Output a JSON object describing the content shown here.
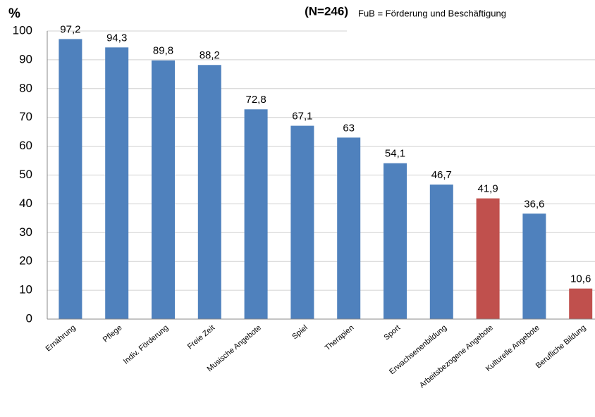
{
  "chart_data": {
    "type": "bar",
    "title": "(N=246)",
    "subtitle": "FuB = Förderung und Beschäftigung",
    "y_label": "%",
    "categories": [
      "Ernährung",
      "Pflege",
      "Indiv. Förderung",
      "Freie Zeit",
      "Musische Angebote",
      "Spiel",
      "Therapien",
      "Sport",
      "Erwachsenenbildung",
      "Arbeitsbezogene Angebote",
      "Kulturelle Angebote",
      "Berufliche Bildung"
    ],
    "values": [
      97.2,
      94.3,
      89.8,
      88.2,
      72.8,
      67.1,
      63,
      54.1,
      46.7,
      41.9,
      36.6,
      10.6
    ],
    "value_labels": [
      "97,2",
      "94,3",
      "89,8",
      "88,2",
      "72,8",
      "67,1",
      "63",
      "54,1",
      "46,7",
      "41,9",
      "36,6",
      "10,6"
    ],
    "colors": [
      "#4f81bd",
      "#4f81bd",
      "#4f81bd",
      "#4f81bd",
      "#4f81bd",
      "#4f81bd",
      "#4f81bd",
      "#4f81bd",
      "#4f81bd",
      "#c0504d",
      "#4f81bd",
      "#c0504d"
    ],
    "ylim": [
      0,
      100
    ],
    "yticks": [
      0,
      10,
      20,
      30,
      40,
      50,
      60,
      70,
      80,
      90,
      100
    ],
    "grid": true
  }
}
